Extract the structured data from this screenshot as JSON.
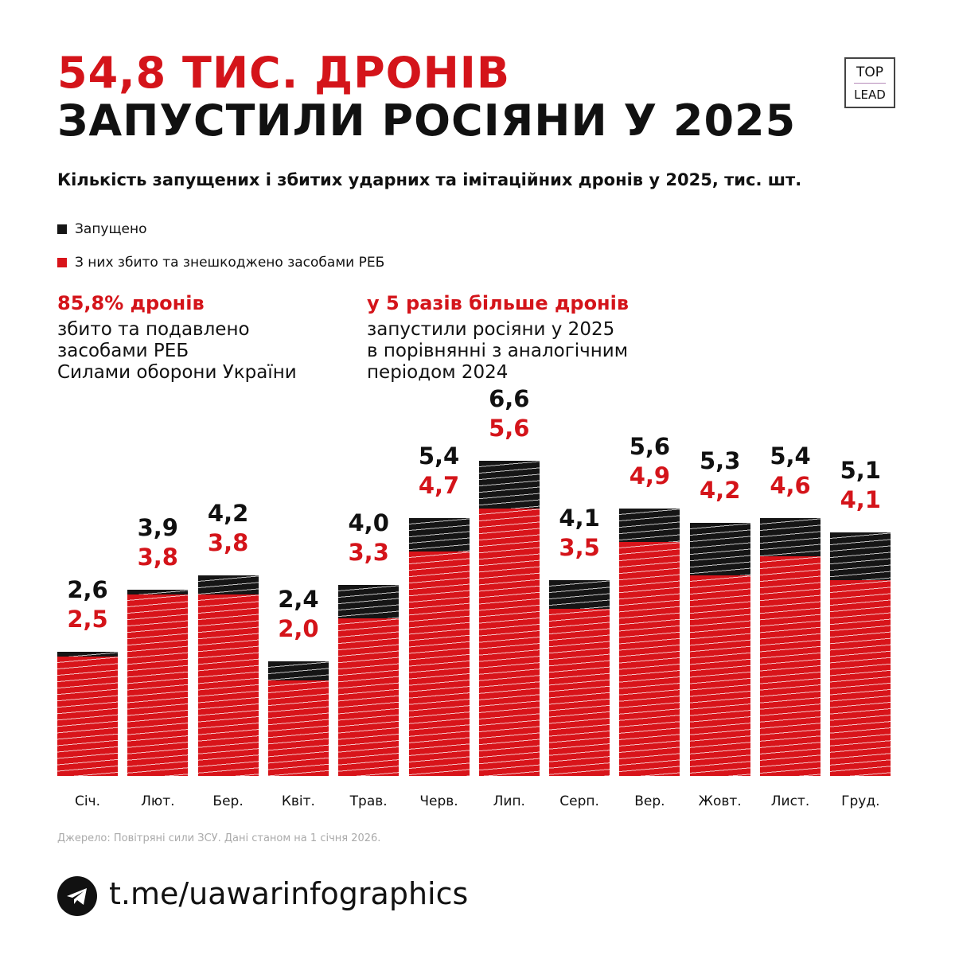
{
  "title_line1": "54,8 ТИС. ДРОНІВ",
  "title_line2": "ЗАПУСТИЛИ РОСІЯНИ У 2025",
  "logo": {
    "line1": "TOP",
    "line2": "LEAD"
  },
  "kpi1": {
    "headline": "85,8% дронів",
    "lines": [
      "збито та подавлено",
      "засобами РЕБ",
      "Силами оборони України"
    ]
  },
  "kpi2": {
    "headline": "у 5 разів більше дронів",
    "lines": [
      "запустили росіяни у 2025",
      "в порівнянні з аналогічним",
      "періодом 2024"
    ]
  },
  "source": "Джерело: Повітряні сили ЗСУ. Дані станом на 1 січня 2026.",
  "footer_link": "t.me/uawarinfographics",
  "colors": {
    "launched": "#151515",
    "downed": "#d8141a"
  },
  "chart_data": {
    "type": "bar",
    "title": "Кількість запущених і збитих ударних та імітаційних дронів у 2025, тис. шт.",
    "categories": [
      "Січ.",
      "Лют.",
      "Бер.",
      "Квіт.",
      "Трав.",
      "Черв.",
      "Лип.",
      "Серп.",
      "Вер.",
      "Жовт.",
      "Лист.",
      "Груд."
    ],
    "series": [
      {
        "name": "Запущено",
        "values": [
          2.6,
          3.9,
          4.2,
          2.4,
          4.0,
          5.4,
          6.6,
          4.1,
          5.6,
          5.3,
          5.4,
          5.1
        ],
        "labels": [
          "2,6",
          "3,9",
          "4,2",
          "2,4",
          "4,0",
          "5,4",
          "6,6",
          "4,1",
          "5,6",
          "5,3",
          "5,4",
          "5,1"
        ]
      },
      {
        "name": "З них збито та знешкоджено засобами РЕБ",
        "values": [
          2.5,
          3.8,
          3.8,
          2.0,
          3.3,
          4.7,
          5.6,
          3.5,
          4.9,
          4.2,
          4.6,
          4.1
        ],
        "labels": [
          "2,5",
          "3,8",
          "3,8",
          "2,0",
          "3,3",
          "4,7",
          "5,6",
          "3,5",
          "4,9",
          "4,2",
          "4,6",
          "4,1"
        ]
      }
    ],
    "overlapping": true,
    "legend": "top-left",
    "grid": false
  }
}
